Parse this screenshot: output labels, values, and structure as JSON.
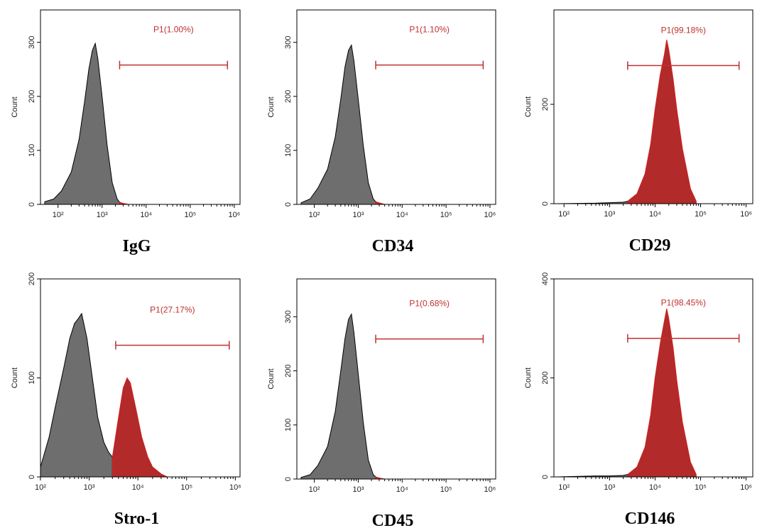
{
  "chart_data": [
    {
      "type": "histogram",
      "label": "IgG",
      "ylabel": "Count",
      "xscale": "log",
      "xlim": [
        40,
        1350000
      ],
      "ylim": [
        0,
        360
      ],
      "xticks": [
        {
          "value": 100,
          "label": "10²"
        },
        {
          "value": 1000,
          "label": "10³"
        },
        {
          "value": 10000,
          "label": "10⁴"
        },
        {
          "value": 100000,
          "label": "10⁵"
        },
        {
          "value": 1000000,
          "label": "10⁶"
        }
      ],
      "yticks": [
        0,
        100,
        200,
        300
      ],
      "gate": {
        "label": "P1(1.00%)",
        "x": [
          2500,
          700000
        ],
        "y": 258,
        "color": "#c03030"
      },
      "series": [
        {
          "color": "#6e6e6e",
          "x": [
            50,
            80,
            120,
            200,
            300,
            400,
            500,
            600,
            700,
            800,
            1000,
            1300,
            1700,
            2200,
            2500
          ],
          "values": [
            5,
            10,
            25,
            60,
            120,
            190,
            250,
            285,
            298,
            270,
            200,
            110,
            40,
            10,
            4
          ]
        },
        {
          "color": "#c03030",
          "x": [
            2500,
            3000,
            4000
          ],
          "values": [
            4,
            2,
            0
          ]
        }
      ]
    },
    {
      "type": "histogram",
      "label": "CD34",
      "ylabel": "Count",
      "xscale": "log",
      "xlim": [
        40,
        1350000
      ],
      "ylim": [
        0,
        360
      ],
      "xticks": [
        {
          "value": 100,
          "label": "10²"
        },
        {
          "value": 1000,
          "label": "10³"
        },
        {
          "value": 10000,
          "label": "10⁴"
        },
        {
          "value": 100000,
          "label": "10⁵"
        },
        {
          "value": 1000000,
          "label": "10⁶"
        }
      ],
      "yticks": [
        0,
        100,
        200,
        300
      ],
      "gate": {
        "label": "P1(1.10%)",
        "x": [
          2500,
          700000
        ],
        "y": 258,
        "color": "#c03030"
      },
      "series": [
        {
          "color": "#6e6e6e",
          "x": [
            50,
            80,
            120,
            200,
            300,
            400,
            500,
            600,
            700,
            800,
            1000,
            1300,
            1700,
            2200,
            2500
          ],
          "values": [
            3,
            10,
            30,
            65,
            125,
            195,
            255,
            285,
            295,
            265,
            195,
            110,
            40,
            10,
            5
          ]
        },
        {
          "color": "#c03030",
          "x": [
            2500,
            3000,
            4000
          ],
          "values": [
            5,
            3,
            0
          ]
        }
      ]
    },
    {
      "type": "histogram",
      "label": "CD29",
      "ylabel": "Count",
      "xscale": "log",
      "xlim": [
        60,
        1400000
      ],
      "ylim": [
        0,
        390
      ],
      "xticks": [
        {
          "value": 100,
          "label": "10²"
        },
        {
          "value": 1000,
          "label": "10³"
        },
        {
          "value": 10000,
          "label": "10⁴"
        },
        {
          "value": 100000,
          "label": "10⁵"
        },
        {
          "value": 1000000,
          "label": "10⁶"
        }
      ],
      "yticks": [
        0,
        200
      ],
      "gate": {
        "label": "P1(99.18%)",
        "x": [
          2500,
          700000
        ],
        "y": 278,
        "color": "#c03030"
      },
      "series": [
        {
          "color": "#6e6e6e",
          "x": [
            70,
            500,
            1000,
            2000,
            2500
          ],
          "values": [
            0,
            1,
            2,
            3,
            5
          ]
        },
        {
          "color": "#b22a2a",
          "x": [
            2500,
            4000,
            6000,
            8000,
            10000,
            13000,
            16000,
            18000,
            20000,
            25000,
            30000,
            40000,
            60000,
            80000
          ],
          "values": [
            5,
            20,
            60,
            120,
            190,
            260,
            300,
            330,
            310,
            250,
            190,
            110,
            30,
            5
          ]
        }
      ]
    },
    {
      "type": "histogram",
      "label": "Stro-1",
      "ylabel": "Count",
      "xscale": "log",
      "xlim": [
        100,
        1250000
      ],
      "ylim": [
        0,
        200
      ],
      "xticks": [
        {
          "value": 100,
          "label": "10²"
        },
        {
          "value": 1000,
          "label": "10³"
        },
        {
          "value": 10000,
          "label": "10⁴"
        },
        {
          "value": 100000,
          "label": "10⁵"
        },
        {
          "value": 1000000,
          "label": "10⁶"
        }
      ],
      "yticks": [
        0,
        100,
        200
      ],
      "gate": {
        "label": "P1(27.17%)",
        "x": [
          3500,
          750000
        ],
        "y": 133,
        "color": "#c03030"
      },
      "series": [
        {
          "color": "#6e6e6e",
          "x": [
            100,
            150,
            200,
            300,
            400,
            500,
            600,
            700,
            900,
            1200,
            1500,
            2000,
            2500,
            3000
          ],
          "values": [
            10,
            40,
            70,
            110,
            140,
            155,
            160,
            165,
            140,
            95,
            60,
            35,
            25,
            20
          ]
        },
        {
          "color": "#b22a2a",
          "x": [
            3000,
            4000,
            5000,
            6000,
            7000,
            9000,
            12000,
            16000,
            20000,
            30000,
            40000
          ],
          "values": [
            20,
            60,
            90,
            100,
            95,
            70,
            40,
            20,
            10,
            3,
            0
          ]
        }
      ]
    },
    {
      "type": "histogram",
      "label": "CD45",
      "ylabel": "Count",
      "xscale": "log",
      "xlim": [
        40,
        1350000
      ],
      "ylim": [
        0,
        370
      ],
      "xticks": [
        {
          "value": 100,
          "label": "10²"
        },
        {
          "value": 1000,
          "label": "10³"
        },
        {
          "value": 10000,
          "label": "10⁴"
        },
        {
          "value": 100000,
          "label": "10⁵"
        },
        {
          "value": 1000000,
          "label": "10⁶"
        }
      ],
      "yticks": [
        0,
        100,
        200,
        300
      ],
      "gate": {
        "label": "P1(0.68%)",
        "x": [
          2500,
          700000
        ],
        "y": 259,
        "color": "#c03030"
      },
      "series": [
        {
          "color": "#6e6e6e",
          "x": [
            50,
            80,
            120,
            200,
            300,
            400,
            500,
            600,
            700,
            800,
            1000,
            1300,
            1700,
            2200,
            2500
          ],
          "values": [
            3,
            8,
            25,
            60,
            125,
            200,
            260,
            295,
            305,
            270,
            195,
            105,
            35,
            8,
            4
          ]
        },
        {
          "color": "#c03030",
          "x": [
            2500,
            3000,
            4000
          ],
          "values": [
            4,
            2,
            0
          ]
        }
      ]
    },
    {
      "type": "histogram",
      "label": "CD146",
      "ylabel": "Count",
      "xscale": "log",
      "xlim": [
        60,
        1400000
      ],
      "ylim": [
        0,
        400
      ],
      "xticks": [
        {
          "value": 100,
          "label": "10²"
        },
        {
          "value": 1000,
          "label": "10³"
        },
        {
          "value": 10000,
          "label": "10⁴"
        },
        {
          "value": 100000,
          "label": "10⁵"
        },
        {
          "value": 1000000,
          "label": "10⁶"
        }
      ],
      "yticks": [
        0,
        200,
        400
      ],
      "gate": {
        "label": "P1(98.45%)",
        "x": [
          2500,
          700000
        ],
        "y": 280,
        "color": "#c03030"
      },
      "series": [
        {
          "color": "#6e6e6e",
          "x": [
            70,
            500,
            1000,
            2000,
            2500
          ],
          "values": [
            0,
            2,
            2,
            3,
            5
          ]
        },
        {
          "color": "#b22a2a",
          "x": [
            2500,
            4000,
            6000,
            8000,
            10000,
            13000,
            16000,
            18000,
            20000,
            25000,
            30000,
            40000,
            60000,
            80000
          ],
          "values": [
            5,
            20,
            60,
            125,
            200,
            270,
            315,
            340,
            320,
            260,
            195,
            110,
            30,
            5
          ]
        }
      ]
    }
  ]
}
